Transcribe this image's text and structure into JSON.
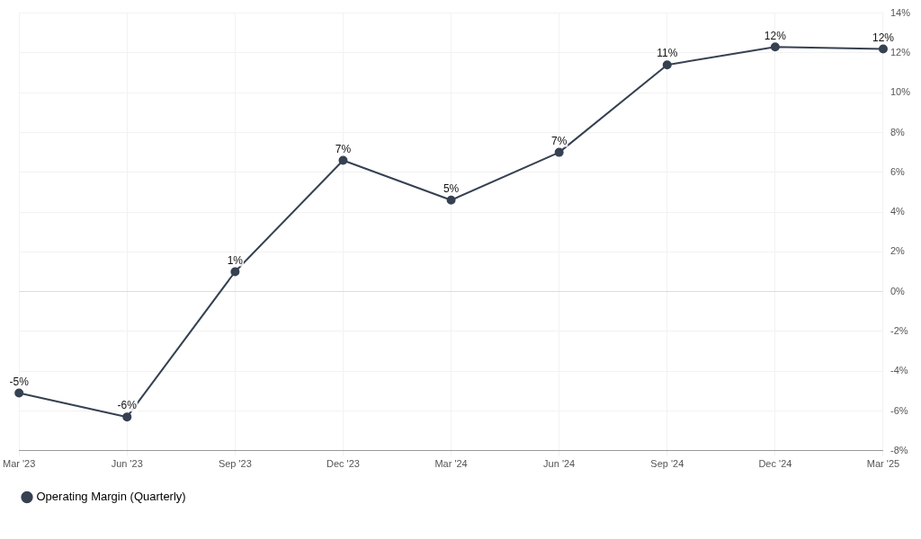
{
  "chart_data": {
    "type": "line",
    "categories": [
      "Mar '23",
      "Jun '23",
      "Sep '23",
      "Dec '23",
      "Mar '24",
      "Jun '24",
      "Sep '24",
      "Dec '24",
      "Mar '25"
    ],
    "series": [
      {
        "name": "Operating Margin (Quarterly)",
        "color": "#364152",
        "values": [
          -5.1,
          -6.3,
          1.0,
          6.6,
          4.6,
          7.0,
          11.4,
          12.3,
          12.2
        ],
        "value_labels": [
          "-5%",
          "-6%",
          "1%",
          "7%",
          "5%",
          "7%",
          "11%",
          "12%",
          "12%"
        ]
      }
    ],
    "ylim": [
      -8,
      14
    ],
    "yticks": [
      {
        "value": -8,
        "label": "-8%"
      },
      {
        "value": -6,
        "label": "-6%"
      },
      {
        "value": -4,
        "label": "-4%"
      },
      {
        "value": -2,
        "label": "-2%"
      },
      {
        "value": 0,
        "label": "0%"
      },
      {
        "value": 2,
        "label": "2%"
      },
      {
        "value": 4,
        "label": "4%"
      },
      {
        "value": 6,
        "label": "6%"
      },
      {
        "value": 8,
        "label": "8%"
      },
      {
        "value": 10,
        "label": "10%"
      },
      {
        "value": 12,
        "label": "12%"
      },
      {
        "value": 14,
        "label": "14%"
      }
    ],
    "grid": true,
    "legend": "bottom left",
    "marker": "circle",
    "line_style": "solid"
  }
}
